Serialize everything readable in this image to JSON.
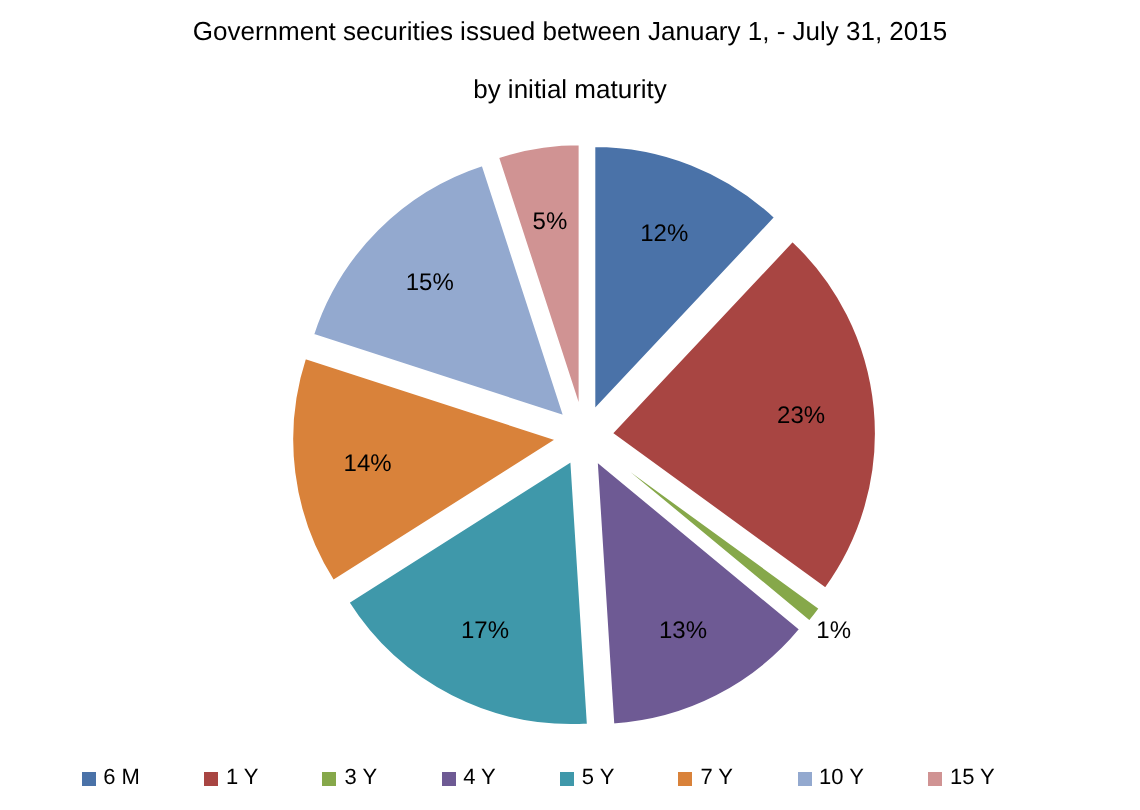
{
  "chart_data": {
    "type": "pie",
    "title": "Government securities issued between January 1, - July 31, 2015",
    "subtitle": "by initial maturity",
    "categories": [
      "6 M",
      "1 Y",
      "3 Y",
      "4 Y",
      "5 Y",
      "7 Y",
      "10 Y",
      "15 Y"
    ],
    "values": [
      12,
      23,
      1,
      13,
      17,
      14,
      15,
      5
    ],
    "value_labels": [
      "12%",
      "23%",
      "1%",
      "13%",
      "17%",
      "14%",
      "15%",
      "5%"
    ],
    "colors": [
      "#4a72a8",
      "#a84542",
      "#86a84a",
      "#6e5a94",
      "#3f98aa",
      "#d9823a",
      "#93a9cf",
      "#d09393"
    ],
    "legend": "bottom"
  }
}
